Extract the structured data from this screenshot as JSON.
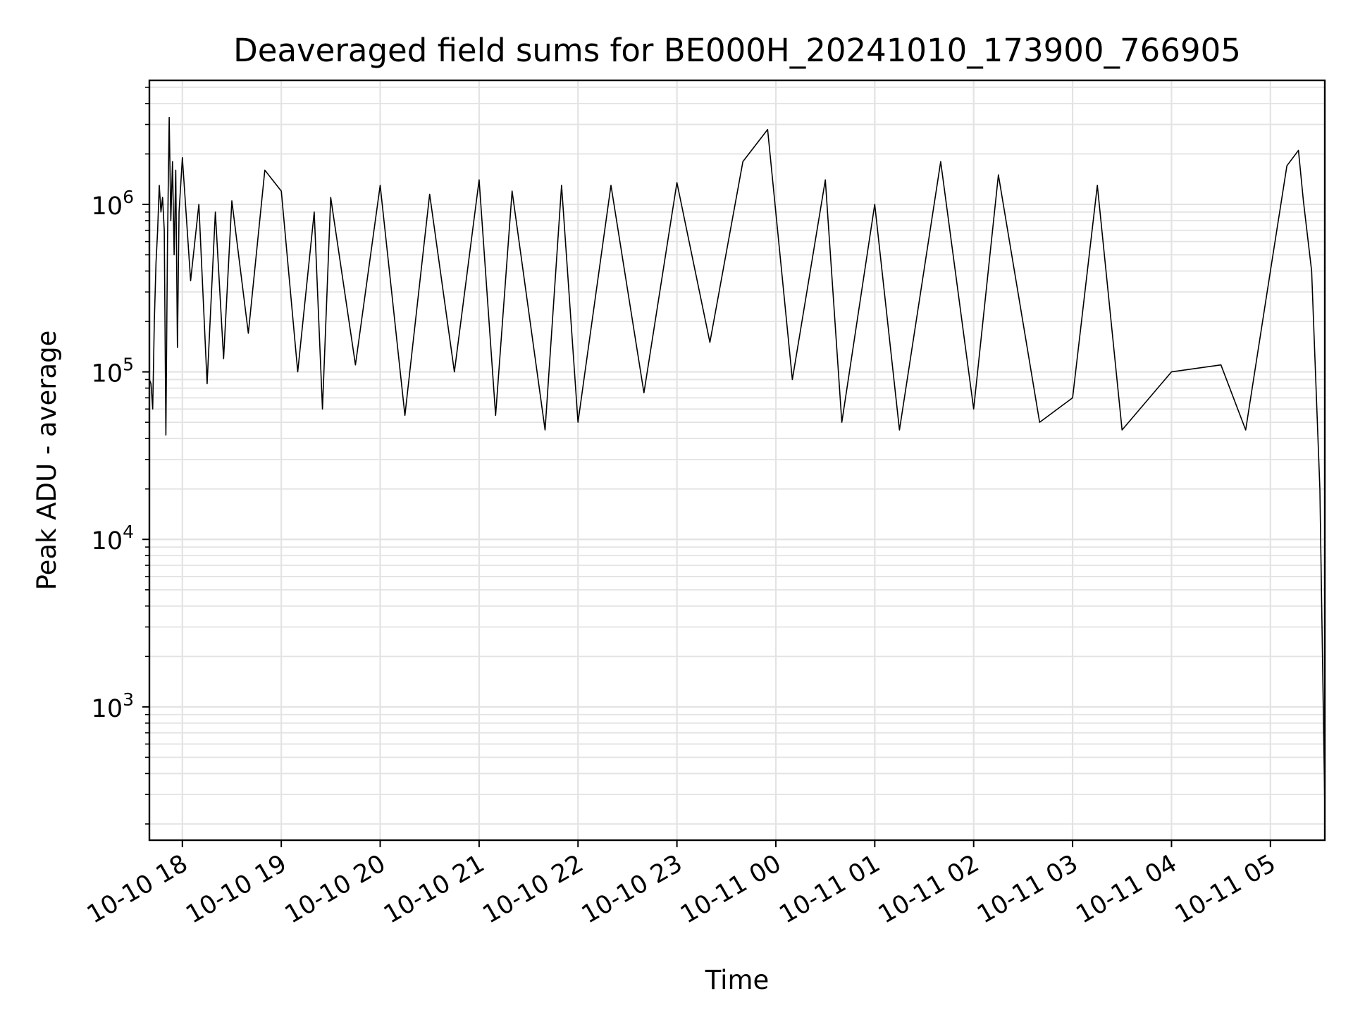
{
  "chart_data": {
    "type": "line",
    "title": "Deaveraged field sums for BE000H_20241010_173900_766905",
    "xlabel": "Time",
    "ylabel": "Peak ADU - average",
    "yscale": "log",
    "ylim": [
      160,
      5500000
    ],
    "xlim": [
      "2024-10-10 17:40",
      "2024-10-11 05:33"
    ],
    "grid": true,
    "line_color": "#000000",
    "grid_color": "#e3e3e3",
    "x_ticks": [
      {
        "value": "2024-10-10 18:00",
        "label": "10-10 18"
      },
      {
        "value": "2024-10-10 19:00",
        "label": "10-10 19"
      },
      {
        "value": "2024-10-10 20:00",
        "label": "10-10 20"
      },
      {
        "value": "2024-10-10 21:00",
        "label": "10-10 21"
      },
      {
        "value": "2024-10-10 22:00",
        "label": "10-10 22"
      },
      {
        "value": "2024-10-10 23:00",
        "label": "10-10 23"
      },
      {
        "value": "2024-10-11 00:00",
        "label": "10-11 00"
      },
      {
        "value": "2024-10-11 01:00",
        "label": "10-11 01"
      },
      {
        "value": "2024-10-11 02:00",
        "label": "10-11 02"
      },
      {
        "value": "2024-10-11 03:00",
        "label": "10-11 03"
      },
      {
        "value": "2024-10-11 04:00",
        "label": "10-11 04"
      },
      {
        "value": "2024-10-11 05:00",
        "label": "10-11 05"
      }
    ],
    "y_ticks": [
      {
        "value": 1000,
        "mantissa": "10",
        "exp": "3"
      },
      {
        "value": 10000,
        "mantissa": "10",
        "exp": "4"
      },
      {
        "value": 100000,
        "mantissa": "10",
        "exp": "5"
      },
      {
        "value": 1000000,
        "mantissa": "10",
        "exp": "6"
      }
    ],
    "series": [
      {
        "points": [
          [
            "2024-10-10 17:40",
            90000
          ],
          [
            "2024-10-10 17:41",
            85000
          ],
          [
            "2024-10-10 17:42",
            60000
          ],
          [
            "2024-10-10 17:43",
            200000
          ],
          [
            "2024-10-10 17:44",
            450000
          ],
          [
            "2024-10-10 17:45",
            700000
          ],
          [
            "2024-10-10 17:46",
            1300000
          ],
          [
            "2024-10-10 17:47",
            900000
          ],
          [
            "2024-10-10 17:48",
            1100000
          ],
          [
            "2024-10-10 17:49",
            700000
          ],
          [
            "2024-10-10 17:50",
            42000
          ],
          [
            "2024-10-10 17:51",
            600000
          ],
          [
            "2024-10-10 17:52",
            3300000
          ],
          [
            "2024-10-10 17:53",
            800000
          ],
          [
            "2024-10-10 17:54",
            1800000
          ],
          [
            "2024-10-10 17:55",
            500000
          ],
          [
            "2024-10-10 17:56",
            1600000
          ],
          [
            "2024-10-10 17:57",
            140000
          ],
          [
            "2024-10-10 17:58",
            900000
          ],
          [
            "2024-10-10 18:00",
            1900000
          ],
          [
            "2024-10-10 18:05",
            350000
          ],
          [
            "2024-10-10 18:10",
            1000000
          ],
          [
            "2024-10-10 18:15",
            85000
          ],
          [
            "2024-10-10 18:20",
            900000
          ],
          [
            "2024-10-10 18:25",
            120000
          ],
          [
            "2024-10-10 18:30",
            1050000
          ],
          [
            "2024-10-10 18:40",
            170000
          ],
          [
            "2024-10-10 18:50",
            1600000
          ],
          [
            "2024-10-10 19:00",
            1200000
          ],
          [
            "2024-10-10 19:10",
            100000
          ],
          [
            "2024-10-10 19:20",
            900000
          ],
          [
            "2024-10-10 19:25",
            60000
          ],
          [
            "2024-10-10 19:30",
            1100000
          ],
          [
            "2024-10-10 19:45",
            110000
          ],
          [
            "2024-10-10 20:00",
            1300000
          ],
          [
            "2024-10-10 20:15",
            55000
          ],
          [
            "2024-10-10 20:30",
            1150000
          ],
          [
            "2024-10-10 20:45",
            100000
          ],
          [
            "2024-10-10 21:00",
            1400000
          ],
          [
            "2024-10-10 21:10",
            55000
          ],
          [
            "2024-10-10 21:20",
            1200000
          ],
          [
            "2024-10-10 21:40",
            45000
          ],
          [
            "2024-10-10 21:50",
            1300000
          ],
          [
            "2024-10-10 22:00",
            50000
          ],
          [
            "2024-10-10 22:20",
            1300000
          ],
          [
            "2024-10-10 22:40",
            75000
          ],
          [
            "2024-10-10 23:00",
            1350000
          ],
          [
            "2024-10-10 23:20",
            150000
          ],
          [
            "2024-10-10 23:40",
            1800000
          ],
          [
            "2024-10-10 23:55",
            2800000
          ],
          [
            "2024-10-11 00:10",
            90000
          ],
          [
            "2024-10-11 00:30",
            1400000
          ],
          [
            "2024-10-11 00:40",
            50000
          ],
          [
            "2024-10-11 01:00",
            1000000
          ],
          [
            "2024-10-11 01:15",
            45000
          ],
          [
            "2024-10-11 01:40",
            1800000
          ],
          [
            "2024-10-11 02:00",
            60000
          ],
          [
            "2024-10-11 02:15",
            1500000
          ],
          [
            "2024-10-11 02:40",
            50000
          ],
          [
            "2024-10-11 03:00",
            70000
          ],
          [
            "2024-10-11 03:15",
            1300000
          ],
          [
            "2024-10-11 03:30",
            45000
          ],
          [
            "2024-10-11 04:00",
            100000
          ],
          [
            "2024-10-11 04:30",
            110000
          ],
          [
            "2024-10-11 04:45",
            45000
          ],
          [
            "2024-10-11 05:00",
            400000
          ],
          [
            "2024-10-11 05:10",
            1700000
          ],
          [
            "2024-10-11 05:17",
            2100000
          ],
          [
            "2024-10-11 05:20",
            1050000
          ],
          [
            "2024-10-11 05:25",
            400000
          ],
          [
            "2024-10-11 05:30",
            20000
          ],
          [
            "2024-10-11 05:33",
            250
          ]
        ]
      }
    ]
  }
}
